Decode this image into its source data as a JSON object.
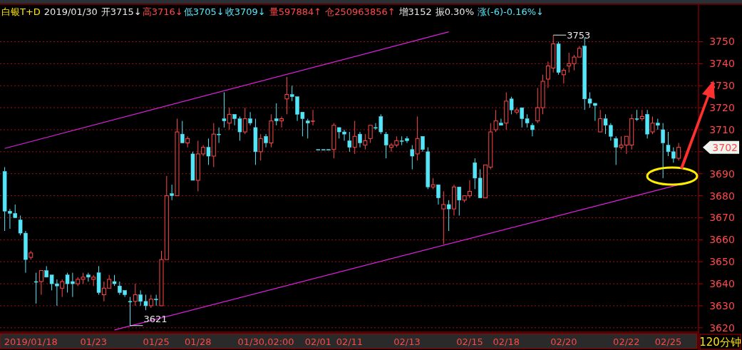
{
  "chart_data": {
    "type": "candlestick",
    "title": "白银T+D",
    "subtitle": "2019/01/30",
    "categories": [
      null,
      null,
      null,
      null,
      null,
      "2019/01/18",
      null,
      null,
      null,
      null,
      null,
      null,
      null,
      null,
      null,
      null,
      null,
      "01/23",
      null,
      null,
      null,
      null,
      null,
      null,
      null,
      null,
      null,
      null,
      null,
      "01/25",
      null,
      null,
      null,
      null,
      null,
      null,
      null,
      "01/28",
      null,
      null,
      null,
      null,
      null,
      null,
      null,
      null,
      null,
      null,
      null,
      null,
      "01/30,02:00",
      null,
      null,
      null,
      null,
      null,
      null,
      null,
      null,
      null,
      "02/01",
      null,
      null,
      null,
      null,
      null,
      "02/11",
      null,
      null,
      null,
      null,
      null,
      null,
      null,
      null,
      null,
      null,
      "02/13",
      null,
      null,
      null,
      null,
      null,
      null,
      null,
      null,
      null,
      null,
      null,
      "02/15",
      null,
      null,
      null,
      null,
      null,
      null,
      "02/18",
      null,
      null,
      null,
      null,
      null,
      null,
      null,
      null,
      null,
      null,
      "02/20",
      null,
      null,
      null,
      null,
      null,
      null,
      null,
      null,
      null,
      null,
      null,
      "02/22",
      null,
      null,
      null,
      null,
      null,
      null,
      null,
      "02/25",
      null,
      null
    ],
    "ohlc": [
      [
        3691,
        3693,
        3664,
        3673
      ],
      [
        3673,
        3674,
        3665,
        3672
      ],
      [
        3672,
        3676,
        3670,
        3670
      ],
      [
        3669,
        3671,
        3662,
        3663
      ],
      [
        3663,
        3664,
        3645,
        3651
      ],
      [
        3652,
        3655,
        3651,
        3654
      ],
      [
        3641,
        3645,
        3631,
        3641
      ],
      [
        3641,
        3646,
        3635,
        3646
      ],
      [
        3646,
        3648,
        3643,
        3643
      ],
      [
        3644,
        3644,
        3637,
        3640
      ],
      [
        3640,
        3642,
        3630,
        3639
      ],
      [
        3638,
        3642,
        3634,
        3641
      ],
      [
        3644,
        3645,
        3636,
        3640
      ],
      [
        3641,
        3645,
        3634,
        3640
      ],
      [
        3640,
        3643,
        3639,
        3642
      ],
      [
        3642,
        3645,
        3640,
        3643
      ],
      [
        3644,
        3645,
        3641,
        3643
      ],
      [
        3642,
        3644,
        3639,
        3643
      ],
      [
        3645,
        3648,
        3635,
        3636
      ],
      [
        3635,
        3641,
        3632,
        3638
      ],
      [
        3638,
        3644,
        3638,
        3642
      ],
      [
        3641,
        3644,
        3639,
        3640
      ],
      [
        3639,
        3641,
        3635,
        3636
      ],
      [
        3637,
        3637,
        3634,
        3635
      ],
      [
        3632,
        3634,
        3621,
        3632
      ],
      [
        3632,
        3640,
        3630,
        3635
      ],
      [
        3635,
        3637,
        3630,
        3632
      ],
      [
        3632,
        3635,
        3628,
        3630
      ],
      [
        3630,
        3635,
        3629,
        3633
      ],
      [
        3633,
        3635,
        3630,
        3633
      ],
      [
        3630,
        3655,
        3630,
        3651
      ],
      [
        3651,
        3689,
        3651,
        3680
      ],
      [
        3681,
        3685,
        3678,
        3680
      ],
      [
        3680,
        3715,
        3680,
        3709
      ],
      [
        3708,
        3714,
        3704,
        3704
      ],
      [
        3704,
        3707,
        3702,
        3706
      ],
      [
        3699,
        3700,
        3687,
        3687
      ],
      [
        3687,
        3705,
        3682,
        3699
      ],
      [
        3699,
        3703,
        3698,
        3702
      ],
      [
        3702,
        3706,
        3694,
        3698
      ],
      [
        3698,
        3713,
        3693,
        3708
      ],
      [
        3708,
        3711,
        3704,
        3708
      ],
      [
        3715,
        3727,
        3711,
        3714
      ],
      [
        3713,
        3720,
        3710,
        3717
      ],
      [
        3717,
        3717,
        3712,
        3715
      ],
      [
        3715,
        3716,
        3705,
        3709
      ],
      [
        3709,
        3720,
        3708,
        3715
      ],
      [
        3715,
        3718,
        3712,
        3713
      ],
      [
        3711,
        3715,
        3694,
        3700
      ],
      [
        3700,
        3708,
        3696,
        3706
      ],
      [
        3707,
        3708,
        3702,
        3704
      ],
      [
        3704,
        3717,
        3702,
        3714
      ],
      [
        3715,
        3722,
        3712,
        3714
      ],
      [
        3714,
        3716,
        3711,
        3715
      ],
      [
        3724,
        3734,
        3717,
        3726
      ],
      [
        3726,
        3730,
        3723,
        3725
      ],
      [
        3725,
        3725,
        3714,
        3717
      ],
      [
        3718,
        3718,
        3707,
        3715
      ],
      [
        3714,
        3715,
        3706,
        3713
      ],
      [
        3714,
        3719,
        3712,
        3714
      ],
      [
        3701,
        3701,
        3701,
        3701
      ],
      [
        3701,
        3701,
        3701,
        3701
      ],
      [
        3701,
        3701,
        3701,
        3701
      ],
      [
        3701,
        3713,
        3697,
        3712
      ],
      [
        3711,
        3711,
        3706,
        3709
      ],
      [
        3709,
        3710,
        3705,
        3708
      ],
      [
        3705,
        3709,
        3700,
        3702
      ],
      [
        3702,
        3714,
        3699,
        3707
      ],
      [
        3708,
        3709,
        3702,
        3704
      ],
      [
        3703,
        3708,
        3701,
        3705
      ],
      [
        3706,
        3712,
        3704,
        3712
      ],
      [
        3711,
        3713,
        3710,
        3711
      ],
      [
        3716,
        3717,
        3708,
        3709
      ],
      [
        3708,
        3709,
        3697,
        3703
      ],
      [
        3702,
        3704,
        3700,
        3703
      ],
      [
        3703,
        3707,
        3702,
        3705
      ],
      [
        3705,
        3707,
        3703,
        3705
      ],
      [
        3706,
        3707,
        3704,
        3705
      ],
      [
        3701,
        3703,
        3692,
        3698
      ],
      [
        3699,
        3716,
        3696,
        3706
      ],
      [
        3707,
        3707,
        3700,
        3701
      ],
      [
        3700,
        3702,
        3683,
        3684
      ],
      [
        3684,
        3688,
        3683,
        3685
      ],
      [
        3685,
        3685,
        3676,
        3679
      ],
      [
        3674,
        3682,
        3658,
        3676
      ],
      [
        3676,
        3678,
        3664,
        3674
      ],
      [
        3674,
        3685,
        3671,
        3684
      ],
      [
        3684,
        3684,
        3671,
        3678
      ],
      [
        3678,
        3680,
        3677,
        3680
      ],
      [
        3680,
        3687,
        3679,
        3682
      ],
      [
        3695,
        3697,
        3683,
        3688
      ],
      [
        3688,
        3692,
        3679,
        3679
      ],
      [
        3679,
        3694,
        3679,
        3694
      ],
      [
        3693,
        3713,
        3692,
        3709
      ],
      [
        3710,
        3719,
        3709,
        3714
      ],
      [
        3713,
        3715,
        3712,
        3712
      ],
      [
        3713,
        3727,
        3710,
        3723
      ],
      [
        3724,
        3725,
        3717,
        3719
      ],
      [
        3718,
        3720,
        3717,
        3719
      ],
      [
        3720,
        3720,
        3711,
        3715
      ],
      [
        3715,
        3717,
        3711,
        3713
      ],
      [
        3712,
        3713,
        3707,
        3710
      ],
      [
        3714,
        3729,
        3713,
        3720
      ],
      [
        3720,
        3735,
        3717,
        3732
      ],
      [
        3733,
        3741,
        3729,
        3739
      ],
      [
        3738,
        3753,
        3736,
        3749
      ],
      [
        3749,
        3750,
        3735,
        3736
      ],
      [
        3735,
        3738,
        3731,
        3737
      ],
      [
        3739,
        3745,
        3736,
        3740
      ],
      [
        3740,
        3744,
        3737,
        3743
      ],
      [
        3743,
        3748,
        3743,
        3747
      ],
      [
        3748,
        3752,
        3719,
        3724
      ],
      [
        3724,
        3727,
        3720,
        3722
      ],
      [
        3722,
        3722,
        3714,
        3721
      ],
      [
        3709,
        3719,
        3709,
        3715
      ],
      [
        3715,
        3717,
        3708,
        3712
      ],
      [
        3712,
        3713,
        3705,
        3707
      ],
      [
        3706,
        3707,
        3694,
        3702
      ],
      [
        3702,
        3707,
        3701,
        3703
      ],
      [
        3703,
        3707,
        3699,
        3707
      ],
      [
        3703,
        3717,
        3701,
        3715
      ],
      [
        3715,
        3719,
        3714,
        3715
      ],
      [
        3715,
        3719,
        3714,
        3716
      ],
      [
        3717,
        3719,
        3706,
        3708
      ],
      [
        3709,
        3716,
        3708,
        3713
      ],
      [
        3713,
        3715,
        3710,
        3712
      ],
      [
        3710,
        3713,
        3688,
        3704
      ],
      [
        3703,
        3709,
        3698,
        3700
      ],
      [
        3700,
        3702,
        3695,
        3697
      ],
      [
        3697,
        3704,
        3696,
        3702
      ]
    ],
    "colors": [
      "#54e6f8",
      "#54e6f8",
      "#54e6f8",
      "#54e6f8",
      "#54e6f8",
      "#ff4848",
      "#54e6f8",
      "#ff4848",
      "#54e6f8",
      "#54e6f8",
      "#54e6f8",
      "#ff4848",
      "#54e6f8",
      "#54e6f8",
      "#ff4848",
      "#ff4848",
      "#54e6f8",
      "#ff4848",
      "#54e6f8",
      "#ff4848",
      "#ff4848",
      "#54e6f8",
      "#54e6f8",
      "#54e6f8",
      "#54e6f8",
      "#ff4848",
      "#54e6f8",
      "#54e6f8",
      "#ff4848",
      "#54e6f8",
      "#ff4848",
      "#ff4848",
      "#54e6f8",
      "#ff4848",
      "#54e6f8",
      "#ff4848",
      "#54e6f8",
      "#ff4848",
      "#ff4848",
      "#54e6f8",
      "#ff4848",
      "#54e6f8",
      "#54e6f8",
      "#ff4848",
      "#54e6f8",
      "#54e6f8",
      "#ff4848",
      "#54e6f8",
      "#54e6f8",
      "#ff4848",
      "#54e6f8",
      "#ff4848",
      "#54e6f8",
      "#ff4848",
      "#ff4848",
      "#54e6f8",
      "#54e6f8",
      "#54e6f8",
      "#54e6f8",
      "#ff4848",
      "#54e6f8",
      "#54e6f8",
      "#54e6f8",
      "#ff4848",
      "#54e6f8",
      "#54e6f8",
      "#54e6f8",
      "#ff4848",
      "#54e6f8",
      "#ff4848",
      "#ff4848",
      "#54e6f8",
      "#54e6f8",
      "#54e6f8",
      "#ff4848",
      "#ff4848",
      "#54e6f8",
      "#54e6f8",
      "#54e6f8",
      "#ff4848",
      "#54e6f8",
      "#54e6f8",
      "#ff4848",
      "#54e6f8",
      "#ff4848",
      "#54e6f8",
      "#ff4848",
      "#54e6f8",
      "#ff4848",
      "#ff4848",
      "#54e6f8",
      "#54e6f8",
      "#ff4848",
      "#ff4848",
      "#ff4848",
      "#54e6f8",
      "#ff4848",
      "#54e6f8",
      "#ff4848",
      "#54e6f8",
      "#54e6f8",
      "#54e6f8",
      "#ff4848",
      "#ff4848",
      "#ff4848",
      "#ff4848",
      "#54e6f8",
      "#ff4848",
      "#ff4848",
      "#ff4848",
      "#ff4848",
      "#54e6f8",
      "#54e6f8",
      "#54e6f8",
      "#ff4848",
      "#54e6f8",
      "#54e6f8",
      "#54e6f8",
      "#ff4848",
      "#ff4848",
      "#ff4848",
      "#54e6f8",
      "#ff4848",
      "#54e6f8",
      "#ff4848",
      "#54e6f8",
      "#54e6f8",
      "#54e6f8",
      "#54e6f8",
      "#ff4848"
    ],
    "series": [
      {
        "type": "line",
        "color": "#e020e0",
        "values": [
          3701.5,
          null,
          null,
          null,
          null,
          null,
          null,
          null,
          null,
          null,
          null,
          null,
          null,
          null,
          null,
          null,
          null,
          null,
          null,
          null,
          null,
          null,
          null,
          null,
          null,
          null,
          null,
          null,
          null,
          null,
          null,
          null,
          null,
          null,
          null,
          null,
          null,
          null,
          null,
          null,
          null,
          null,
          null,
          null,
          null,
          null,
          null,
          null,
          null,
          null,
          null,
          null,
          null,
          null,
          null,
          null,
          null,
          null,
          null,
          null,
          null,
          null,
          null,
          null,
          null,
          null,
          null,
          null,
          null,
          null,
          null,
          null,
          null,
          null,
          null,
          null,
          null,
          null,
          null,
          null,
          null,
          null,
          null,
          null,
          null,
          3754.5,
          null,
          null,
          null,
          null,
          null,
          null,
          null,
          null,
          null,
          null,
          null,
          null,
          null,
          null,
          null,
          null,
          null,
          null,
          null,
          null,
          null,
          null,
          null,
          null,
          null,
          null,
          null,
          null,
          null,
          null,
          null,
          null,
          null,
          null,
          null,
          null,
          null,
          null,
          null,
          null,
          null,
          null,
          null,
          null
        ]
      },
      {
        "type": "line",
        "color": "#e020e0",
        "values": [
          null,
          null,
          null,
          null,
          null,
          null,
          null,
          null,
          null,
          null,
          null,
          null,
          null,
          null,
          null,
          null,
          null,
          null,
          null,
          null,
          null,
          3619,
          null,
          null,
          null,
          null,
          null,
          null,
          null,
          null,
          null,
          null,
          null,
          null,
          null,
          null,
          null,
          null,
          null,
          null,
          null,
          null,
          null,
          null,
          null,
          null,
          null,
          null,
          null,
          null,
          null,
          null,
          null,
          null,
          null,
          null,
          null,
          null,
          null,
          null,
          null,
          null,
          null,
          null,
          null,
          null,
          null,
          null,
          null,
          null,
          null,
          null,
          null,
          null,
          null,
          null,
          null,
          null,
          null,
          null,
          null,
          null,
          null,
          null,
          null,
          null,
          null,
          null,
          null,
          null,
          null,
          null,
          null,
          null,
          null,
          null,
          null,
          null,
          null,
          null,
          null,
          null,
          null,
          null,
          null,
          null,
          null,
          null,
          null,
          null,
          null,
          null,
          null,
          null,
          null,
          null,
          null,
          null,
          null,
          null,
          null,
          null,
          null,
          null,
          null,
          null,
          null,
          null,
          null,
          3685
        ]
      }
    ],
    "ylim": [
      3618,
      3767
    ],
    "yticks": [
      3620,
      3630,
      3640,
      3650,
      3660,
      3670,
      3680,
      3690,
      {
        "value": 3700,
        "label": null
      },
      3710,
      3720,
      3730,
      3740,
      3750
    ],
    "grid": "y",
    "annotations": [
      "开3715↓",
      "高3716↓",
      "低3705↓",
      "收3709↓",
      "量597884↑",
      "仓250963856↑",
      "增3152",
      "振0.30%",
      "涨(-6)-0.16%↓",
      "3621",
      "3753",
      "3702",
      "120分钟"
    ]
  }
}
